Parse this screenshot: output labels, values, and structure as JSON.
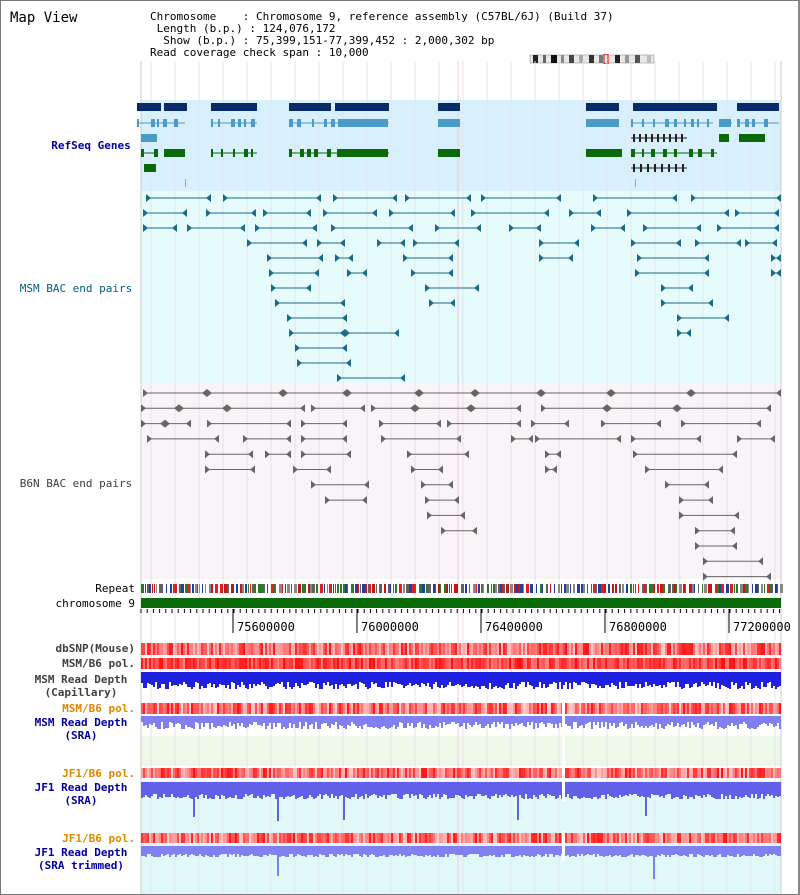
{
  "view_title": "Map View",
  "info": {
    "chromosome_label": "Chromosome",
    "chromosome_value": "Chromosome 9, reference assembly (C57BL/6J) (Build 37)",
    "length_label": "Length (b.p.)",
    "length_value": "124,076,172",
    "show_label": "Show (b.p.)",
    "show_value": "75,399,151-77,399,452 : 2,000,302 bp",
    "coverage_label": "Read coverage check span",
    "coverage_value": "10,000"
  },
  "tracks": {
    "refseq_genes": "RefSeq Genes",
    "msm_bac": "MSM BAC end pairs",
    "b6n_bac": "B6N BAC end pairs",
    "repeat": "Repeat",
    "chromosome": "chromosome 9",
    "dbsnp": "dbSNP(Mouse)",
    "msm_b6_pol_1": "MSM/B6 pol.",
    "msm_read_depth_cap_1": "MSM Read Depth",
    "msm_read_depth_cap_2": "(Capillary)",
    "msm_b6_pol_2": "MSM/B6 pol.",
    "msm_read_depth_sra_1": "MSM Read Depth",
    "msm_read_depth_sra_2": "(SRA)",
    "jf1_b6_pol_1": "JF1/B6 pol.",
    "jf1_read_depth_sra_1": "JF1 Read Depth",
    "jf1_read_depth_sra_2": "(SRA)",
    "jf1_b6_pol_2": "JF1/B6 pol.",
    "jf1_read_depth_trim_1": "JF1 Read Depth",
    "jf1_read_depth_trim_2": "(SRA trimmed)"
  },
  "axis": {
    "ticks": [
      "75600000",
      "76000000",
      "76400000",
      "76800000",
      "77200000"
    ]
  },
  "colors": {
    "refseq_bg": "#d8f0fc",
    "msm_bg": "#e6fbfb",
    "b6n_bg": "#f8f4f8",
    "gene_dark": "#0a2a6a",
    "gene_light": "#4b9ac8",
    "gene_green": "#0a6a0a",
    "msm_line": "#1a6a8a",
    "b6n_line": "#666666",
    "chrom_green": "#0a6a0a",
    "depth_blue": "#2020e0",
    "depth_light": "#8080f0",
    "sra_bg": "#eef8e8",
    "jf_bg": "#e0f8f8",
    "label_blue": "#0000a0",
    "label_orange": "#e08800",
    "label_teal": "#006080",
    "label_gray": "#404040"
  }
}
